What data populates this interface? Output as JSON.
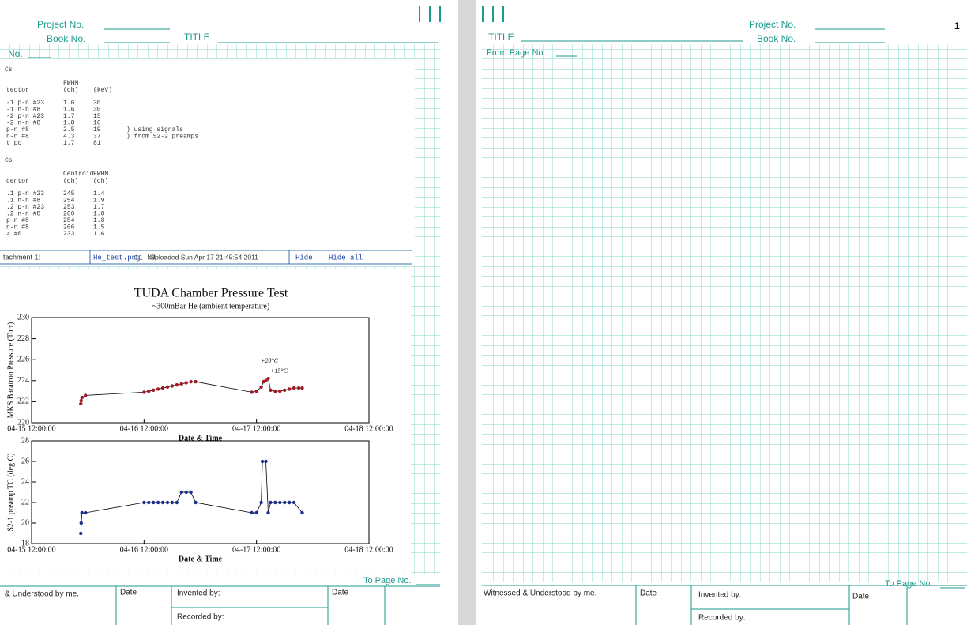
{
  "left_page": {
    "header": {
      "project_no": "Project No.",
      "book_no": "Book No.",
      "title": "TITLE",
      "page_no": "No."
    },
    "printout": {
      "sections": [
        {
          "heading": "Cs",
          "columns": [
            [
              "tector"
            ],
            [
              "FWHM",
              "(ch)"
            ],
            [
              "(keV)"
            ]
          ],
          "rows": [
            [
              "-1 p-n #23",
              "1.6",
              "30"
            ],
            [
              "-1 n-n #8",
              "1.6",
              "30"
            ],
            [
              "-2 p-n #23",
              "1.7",
              "15"
            ],
            [
              "-2 n-n #8",
              "1.8",
              "16"
            ],
            [
              "p-n #8",
              "2.5",
              "19",
              ") using signals"
            ],
            [
              "n-n #8",
              "4.3",
              "37",
              ") from S2-2 preamps"
            ],
            [
              "t pc",
              "1.7",
              "81"
            ]
          ]
        },
        {
          "heading": "Cs",
          "columns": [
            [
              "centor"
            ],
            [
              "Centroid",
              "(ch)"
            ],
            [
              "FWHM",
              "(ch)"
            ]
          ],
          "rows": [
            [
              ".1 p-n #23",
              "245",
              "1.4"
            ],
            [
              ".1 n-n #8",
              "254",
              "1.9"
            ],
            [
              ".2 p-n #23",
              "253",
              "1.7"
            ],
            [
              ".2 n-n #8",
              "260",
              "1.8"
            ],
            [
              "p-n #8",
              "254",
              "1.8"
            ],
            [
              "n-n #8",
              "266",
              "1.5"
            ],
            [
              "> #0",
              "233",
              "1.6"
            ]
          ]
        }
      ],
      "attachment": {
        "label": "tachment 1:",
        "file": "He_test.png",
        "size": "11 kB",
        "uploaded": "Uploaded Sun Apr 17 21:45:54 2011",
        "hide": "Hide",
        "hide_all": "Hide all"
      }
    },
    "figure": {
      "title": "TUDA Chamber Pressure Test",
      "subtitle": "~300mBar He (ambient temperature)",
      "annotations": [
        "+20°C",
        "+15°C"
      ],
      "plots": [
        {
          "type": "line",
          "y_label": "MKS Baratron Pressure (Torr)",
          "x_label": "Date & Time",
          "color": "#a01c28",
          "line_color": "#000000",
          "x": [
            "04-15 22:30:00",
            "04-15 22:35:00",
            "04-15 22:45:00",
            "04-15 23:30:00",
            "04-16 12:00:00",
            "04-16 13:00:00",
            "04-16 14:00:00",
            "04-16 15:00:00",
            "04-16 16:00:00",
            "04-16 17:00:00",
            "04-16 18:00:00",
            "04-16 19:00:00",
            "04-16 20:00:00",
            "04-16 21:00:00",
            "04-16 22:00:00",
            "04-16 23:00:00",
            "04-17 11:00:00",
            "04-17 12:00:00",
            "04-17 13:00:00",
            "04-17 13:30:00",
            "04-17 14:00:00",
            "04-17 14:30:00",
            "04-17 15:00:00",
            "04-17 16:00:00",
            "04-17 17:00:00",
            "04-17 18:00:00",
            "04-17 19:00:00",
            "04-17 20:00:00",
            "04-17 21:00:00",
            "04-17 21:45:00"
          ],
          "values": [
            221.8,
            222.1,
            222.4,
            222.6,
            222.9,
            223.0,
            223.1,
            223.2,
            223.3,
            223.4,
            223.5,
            223.6,
            223.7,
            223.8,
            223.9,
            223.9,
            222.9,
            223.0,
            223.4,
            223.9,
            224.0,
            224.2,
            223.1,
            223.0,
            223.0,
            223.1,
            223.2,
            223.3,
            223.3,
            223.3
          ],
          "xlim": [
            "04-15 12:00:00",
            "04-18 12:00:00"
          ],
          "xticks": [
            "04-15 12:00:00",
            "04-16 12:00:00",
            "04-17 12:00:00",
            "04-18 12:00:00"
          ],
          "ylim": [
            220,
            230
          ],
          "yticks": [
            220,
            222,
            224,
            226,
            228,
            230
          ]
        },
        {
          "type": "line",
          "y_label": "S2-1 preamp TC (deg C)",
          "x_label": "Date & Time",
          "color": "#1a2f8c",
          "line_color": "#000000",
          "x": [
            "04-15 22:30:00",
            "04-15 22:35:00",
            "04-15 22:45:00",
            "04-15 23:30:00",
            "04-16 12:00:00",
            "04-16 13:00:00",
            "04-16 14:00:00",
            "04-16 15:00:00",
            "04-16 16:00:00",
            "04-16 17:00:00",
            "04-16 18:00:00",
            "04-16 19:00:00",
            "04-16 20:00:00",
            "04-16 21:00:00",
            "04-16 22:00:00",
            "04-16 23:00:00",
            "04-17 11:00:00",
            "04-17 12:00:00",
            "04-17 13:00:00",
            "04-17 13:15:00",
            "04-17 14:00:00",
            "04-17 14:30:00",
            "04-17 15:00:00",
            "04-17 16:00:00",
            "04-17 17:00:00",
            "04-17 18:00:00",
            "04-17 19:00:00",
            "04-17 20:00:00",
            "04-17 21:45:00"
          ],
          "values": [
            19,
            20,
            21,
            21,
            22,
            22,
            22,
            22,
            22,
            22,
            22,
            22,
            23,
            23,
            23,
            22,
            21,
            21,
            22,
            26,
            26,
            21,
            22,
            22,
            22,
            22,
            22,
            22,
            21
          ],
          "xlim": [
            "04-15 12:00:00",
            "04-18 12:00:00"
          ],
          "xticks": [
            "04-15 12:00:00",
            "04-16 12:00:00",
            "04-17 12:00:00",
            "04-18 12:00:00"
          ],
          "ylim": [
            18,
            28
          ],
          "yticks": [
            18,
            20,
            22,
            24,
            26,
            28
          ]
        }
      ]
    },
    "footer": {
      "to_page": "To Page No.",
      "witnessed": "& Understood by me.",
      "date1": "Date",
      "invented": "Invented by:",
      "date2": "Date",
      "recorded": "Recorded by:"
    }
  },
  "right_page": {
    "page_number": "1",
    "header": {
      "title": "TITLE",
      "project_no": "Project No.",
      "book_no": "Book No.",
      "from_page": "From Page No."
    },
    "footer": {
      "witnessed": "Witnessed & Understood by me.",
      "date1": "Date",
      "invented": "Invented by:",
      "date2": "Date",
      "to_page": "To Page No.",
      "recorded": "Recorded by:"
    }
  }
}
